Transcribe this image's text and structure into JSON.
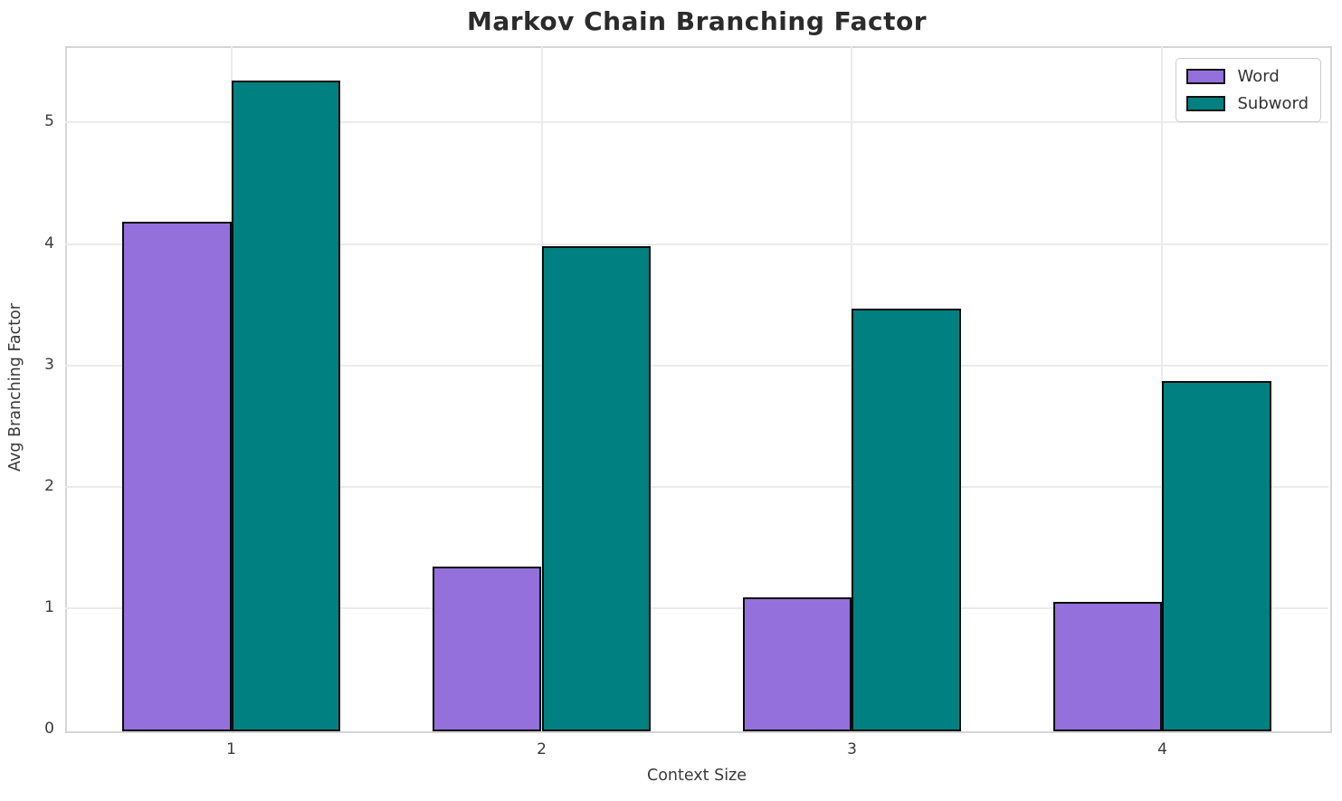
{
  "title": "Markov Chain Branching Factor",
  "chart_data": {
    "type": "bar",
    "title": "Markov Chain Branching Factor",
    "xlabel": "Context Size",
    "ylabel": "Avg Branching Factor",
    "categories": [
      "1",
      "2",
      "3",
      "4"
    ],
    "series": [
      {
        "name": "Word",
        "color": "#9370DB",
        "values": [
          4.18,
          1.34,
          1.09,
          1.05
        ]
      },
      {
        "name": "Subword",
        "color": "#008080",
        "values": [
          5.35,
          3.98,
          3.47,
          2.87
        ]
      }
    ],
    "yticks": [
      0,
      1,
      2,
      3,
      4,
      5
    ],
    "ylim": [
      0,
      5.63
    ],
    "xlim": [
      0.465,
      4.535
    ],
    "bar_width": 0.35,
    "bar_edge_color": "#0c0c0c",
    "grid": true,
    "grid_color": "#ebebeb",
    "spine_color": "#d6d6d6",
    "legend_position": "upper right"
  },
  "legend": {
    "items": [
      {
        "label": "Word",
        "color": "#9370DB"
      },
      {
        "label": "Subword",
        "color": "#008080"
      }
    ]
  }
}
